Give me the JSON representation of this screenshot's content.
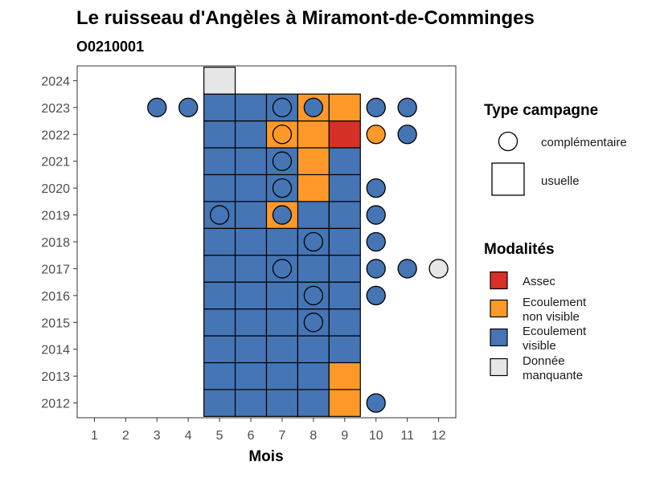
{
  "chart_data": {
    "type": "heatmap",
    "title": "Le ruisseau d'Angèles à Miramont-de-Comminges",
    "subtitle": "O0210001",
    "xlabel": "Mois",
    "ylabel": "",
    "x_ticks": [
      "1",
      "2",
      "3",
      "4",
      "5",
      "6",
      "7",
      "8",
      "9",
      "10",
      "11",
      "12"
    ],
    "y_ticks": [
      "2012",
      "2013",
      "2014",
      "2015",
      "2016",
      "2017",
      "2018",
      "2019",
      "2020",
      "2021",
      "2022",
      "2023",
      "2024"
    ],
    "xlim": [
      0.45,
      12.55
    ],
    "ylim": [
      2011.45,
      2024.55
    ],
    "grid": false,
    "legend_position": "right",
    "colors": {
      "Assec": "#d73027",
      "Ecoulement non visible": "#fe9929",
      "Ecoulement visible": "#4575b4",
      "Donnée manquante": "#e6e6e6"
    },
    "legend": {
      "type_title": "Type campagne",
      "type_items": [
        {
          "label": "complémentaire",
          "shape": "circle"
        },
        {
          "label": "usuelle",
          "shape": "square"
        }
      ],
      "modalites_title": "Modalités",
      "modalites_items": [
        {
          "label_lines": [
            "Assec"
          ],
          "modalite": "Assec"
        },
        {
          "label_lines": [
            "Ecoulement",
            "non visible"
          ],
          "modalite": "Ecoulement non visible"
        },
        {
          "label_lines": [
            "Ecoulement",
            "visible"
          ],
          "modalite": "Ecoulement visible"
        },
        {
          "label_lines": [
            "Donnée",
            "manquante"
          ],
          "modalite": "Donnée manquante"
        }
      ]
    },
    "usuelle": [
      {
        "year": 2012,
        "months": [
          5,
          6,
          7,
          8
        ],
        "modalite": "Ecoulement visible"
      },
      {
        "year": 2012,
        "months": [
          9
        ],
        "modalite": "Ecoulement non visible"
      },
      {
        "year": 2013,
        "months": [
          5,
          6,
          7,
          8
        ],
        "modalite": "Ecoulement visible"
      },
      {
        "year": 2013,
        "months": [
          9
        ],
        "modalite": "Ecoulement non visible"
      },
      {
        "year": 2014,
        "months": [
          5,
          6,
          7,
          8,
          9
        ],
        "modalite": "Ecoulement visible"
      },
      {
        "year": 2015,
        "months": [
          5,
          6,
          7,
          8,
          9
        ],
        "modalite": "Ecoulement visible"
      },
      {
        "year": 2016,
        "months": [
          5,
          6,
          7,
          8,
          9
        ],
        "modalite": "Ecoulement visible"
      },
      {
        "year": 2017,
        "months": [
          5,
          6,
          7,
          8,
          9
        ],
        "modalite": "Ecoulement visible"
      },
      {
        "year": 2018,
        "months": [
          5,
          6,
          7,
          8,
          9
        ],
        "modalite": "Ecoulement visible"
      },
      {
        "year": 2019,
        "months": [
          5,
          6,
          8,
          9
        ],
        "modalite": "Ecoulement visible"
      },
      {
        "year": 2019,
        "months": [
          7
        ],
        "modalite": "Ecoulement non visible"
      },
      {
        "year": 2020,
        "months": [
          5,
          6,
          7,
          9
        ],
        "modalite": "Ecoulement visible"
      },
      {
        "year": 2020,
        "months": [
          8
        ],
        "modalite": "Ecoulement non visible"
      },
      {
        "year": 2021,
        "months": [
          5,
          6,
          7,
          9
        ],
        "modalite": "Ecoulement visible"
      },
      {
        "year": 2021,
        "months": [
          8
        ],
        "modalite": "Ecoulement non visible"
      },
      {
        "year": 2022,
        "months": [
          5,
          6
        ],
        "modalite": "Ecoulement visible"
      },
      {
        "year": 2022,
        "months": [
          7,
          8
        ],
        "modalite": "Ecoulement non visible"
      },
      {
        "year": 2022,
        "months": [
          9
        ],
        "modalite": "Assec"
      },
      {
        "year": 2023,
        "months": [
          5,
          6,
          7
        ],
        "modalite": "Ecoulement visible"
      },
      {
        "year": 2023,
        "months": [
          8,
          9
        ],
        "modalite": "Ecoulement non visible"
      },
      {
        "year": 2024,
        "months": [
          5
        ],
        "modalite": "Donnée manquante"
      }
    ],
    "complementaire": [
      {
        "year": 2012,
        "month": 10,
        "modalite": "Ecoulement visible"
      },
      {
        "year": 2015,
        "month": 8,
        "modalite": "Ecoulement visible"
      },
      {
        "year": 2016,
        "month": 8,
        "modalite": "Ecoulement visible"
      },
      {
        "year": 2016,
        "month": 10,
        "modalite": "Ecoulement visible"
      },
      {
        "year": 2017,
        "month": 7,
        "modalite": "Ecoulement visible"
      },
      {
        "year": 2017,
        "month": 10,
        "modalite": "Ecoulement visible"
      },
      {
        "year": 2017,
        "month": 11,
        "modalite": "Ecoulement visible"
      },
      {
        "year": 2017,
        "month": 12,
        "modalite": "Donnée manquante"
      },
      {
        "year": 2018,
        "month": 8,
        "modalite": "Ecoulement visible"
      },
      {
        "year": 2018,
        "month": 10,
        "modalite": "Ecoulement visible"
      },
      {
        "year": 2019,
        "month": 5,
        "modalite": "Ecoulement visible"
      },
      {
        "year": 2019,
        "month": 7,
        "modalite": "Ecoulement visible"
      },
      {
        "year": 2019,
        "month": 10,
        "modalite": "Ecoulement visible"
      },
      {
        "year": 2020,
        "month": 7,
        "modalite": "Ecoulement visible"
      },
      {
        "year": 2020,
        "month": 10,
        "modalite": "Ecoulement visible"
      },
      {
        "year": 2021,
        "month": 7,
        "modalite": "Ecoulement visible"
      },
      {
        "year": 2022,
        "month": 7,
        "modalite": "Ecoulement non visible"
      },
      {
        "year": 2022,
        "month": 10,
        "modalite": "Ecoulement non visible"
      },
      {
        "year": 2022,
        "month": 11,
        "modalite": "Ecoulement visible"
      },
      {
        "year": 2023,
        "month": 3,
        "modalite": "Ecoulement visible"
      },
      {
        "year": 2023,
        "month": 4,
        "modalite": "Ecoulement visible"
      },
      {
        "year": 2023,
        "month": 7,
        "modalite": "Ecoulement visible"
      },
      {
        "year": 2023,
        "month": 8,
        "modalite": "Ecoulement visible"
      },
      {
        "year": 2023,
        "month": 10,
        "modalite": "Ecoulement visible"
      },
      {
        "year": 2023,
        "month": 11,
        "modalite": "Ecoulement visible"
      }
    ]
  }
}
